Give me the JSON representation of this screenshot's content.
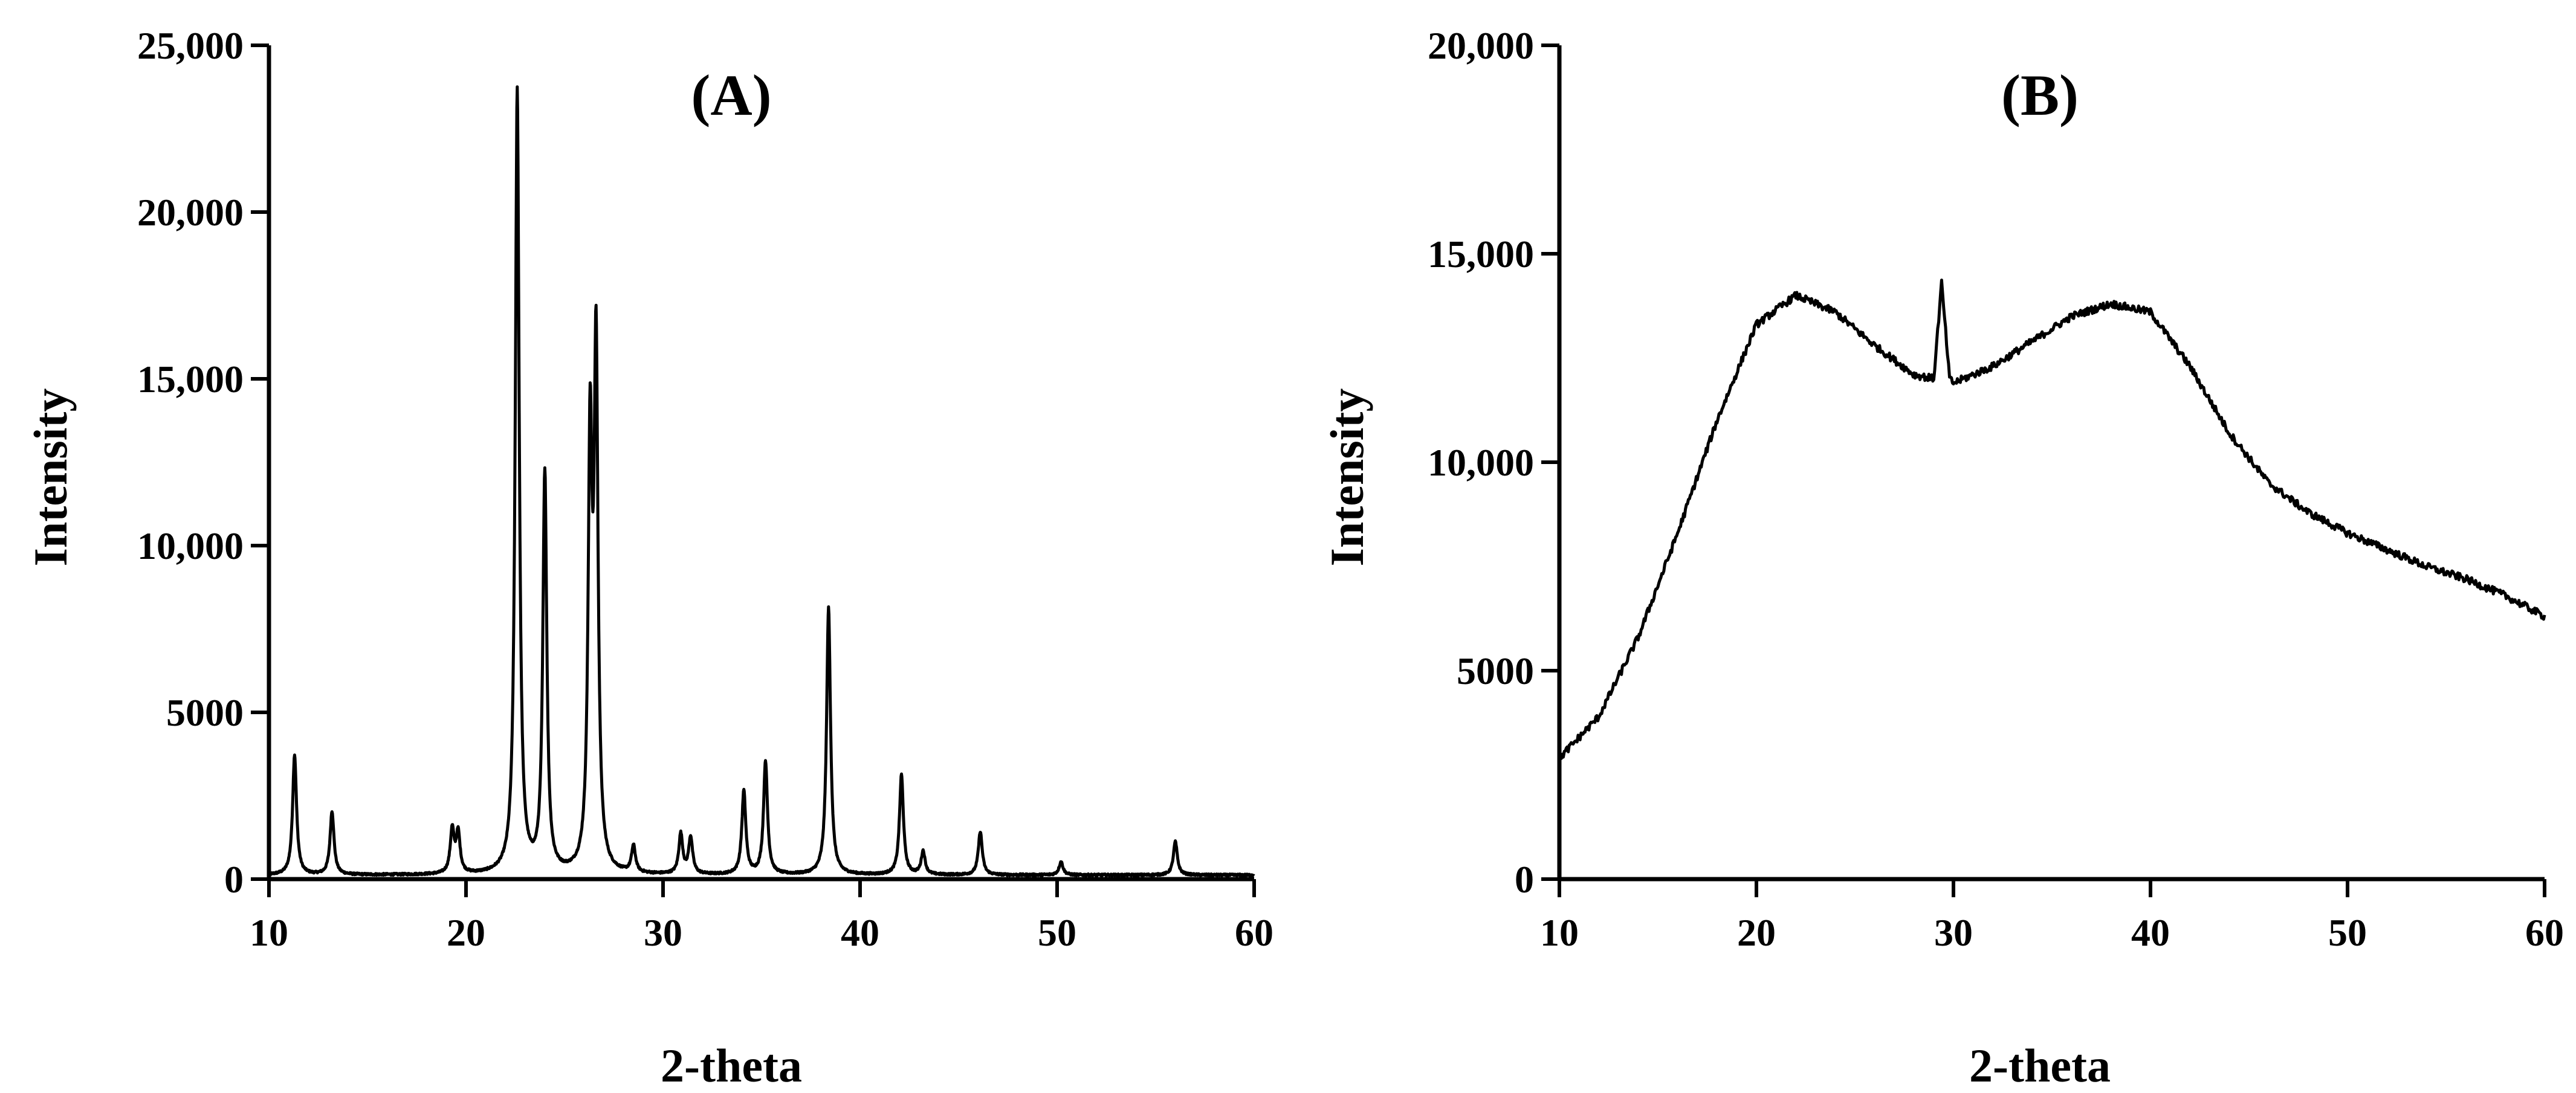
{
  "chart_data": [
    {
      "type": "line",
      "title": "(A)",
      "xlabel": "2-theta",
      "ylabel": "Intensity",
      "xlim": [
        10,
        60
      ],
      "ylim": [
        0,
        25000
      ],
      "xticks": [
        10,
        20,
        30,
        40,
        50,
        60
      ],
      "xtick_labels": [
        "10",
        "20",
        "30",
        "40",
        "50",
        "60"
      ],
      "yticks": [
        0,
        5000,
        10000,
        15000,
        20000,
        25000
      ],
      "ytick_labels": [
        "0",
        "5000",
        "10,000",
        "15,000",
        "20,000",
        "25,000"
      ],
      "grid": false,
      "line_color": "#000000",
      "baseline": 120,
      "peaks": [
        {
          "x": 11.3,
          "y": 3600
        },
        {
          "x": 13.2,
          "y": 1900
        },
        {
          "x": 19.3,
          "y": 1300
        },
        {
          "x": 19.6,
          "y": 1200
        },
        {
          "x": 22.6,
          "y": 23500
        },
        {
          "x": 24.0,
          "y": 12000
        },
        {
          "x": 26.3,
          "y": 12600
        },
        {
          "x": 26.6,
          "y": 15300
        },
        {
          "x": 28.5,
          "y": 800
        },
        {
          "x": 30.9,
          "y": 1200
        },
        {
          "x": 31.4,
          "y": 1100
        },
        {
          "x": 34.1,
          "y": 2500
        },
        {
          "x": 35.2,
          "y": 3400
        },
        {
          "x": 38.4,
          "y": 8000
        },
        {
          "x": 42.1,
          "y": 3000
        },
        {
          "x": 43.2,
          "y": 700
        },
        {
          "x": 46.1,
          "y": 1300
        },
        {
          "x": 50.2,
          "y": 400
        },
        {
          "x": 56.0,
          "y": 1000
        }
      ]
    },
    {
      "type": "line",
      "title": "(B)",
      "xlabel": "2-theta",
      "ylabel": "Intensity",
      "xlim": [
        10,
        60
      ],
      "ylim": [
        0,
        20000
      ],
      "xticks": [
        10,
        20,
        30,
        40,
        50,
        60
      ],
      "xtick_labels": [
        "10",
        "20",
        "30",
        "40",
        "50",
        "60"
      ],
      "yticks": [
        0,
        5000,
        10000,
        15000,
        20000
      ],
      "ytick_labels": [
        "0",
        "5000",
        "10,000",
        "15,000",
        "20,000"
      ],
      "grid": false,
      "line_color": "#000000",
      "x": [
        10,
        12,
        14,
        16,
        18,
        20,
        22,
        24,
        26,
        28,
        29,
        29.4,
        29.8,
        30,
        32,
        34,
        36,
        38,
        40,
        42,
        44,
        46,
        48,
        50,
        52,
        54,
        56,
        58,
        60
      ],
      "y": [
        2900,
        3900,
        5800,
        8300,
        11000,
        13300,
        14000,
        13600,
        12800,
        12100,
        12000,
        14300,
        12000,
        11900,
        12300,
        12900,
        13500,
        13800,
        13600,
        12300,
        10700,
        9500,
        8800,
        8300,
        7900,
        7500,
        7200,
        6800,
        6300
      ]
    }
  ]
}
